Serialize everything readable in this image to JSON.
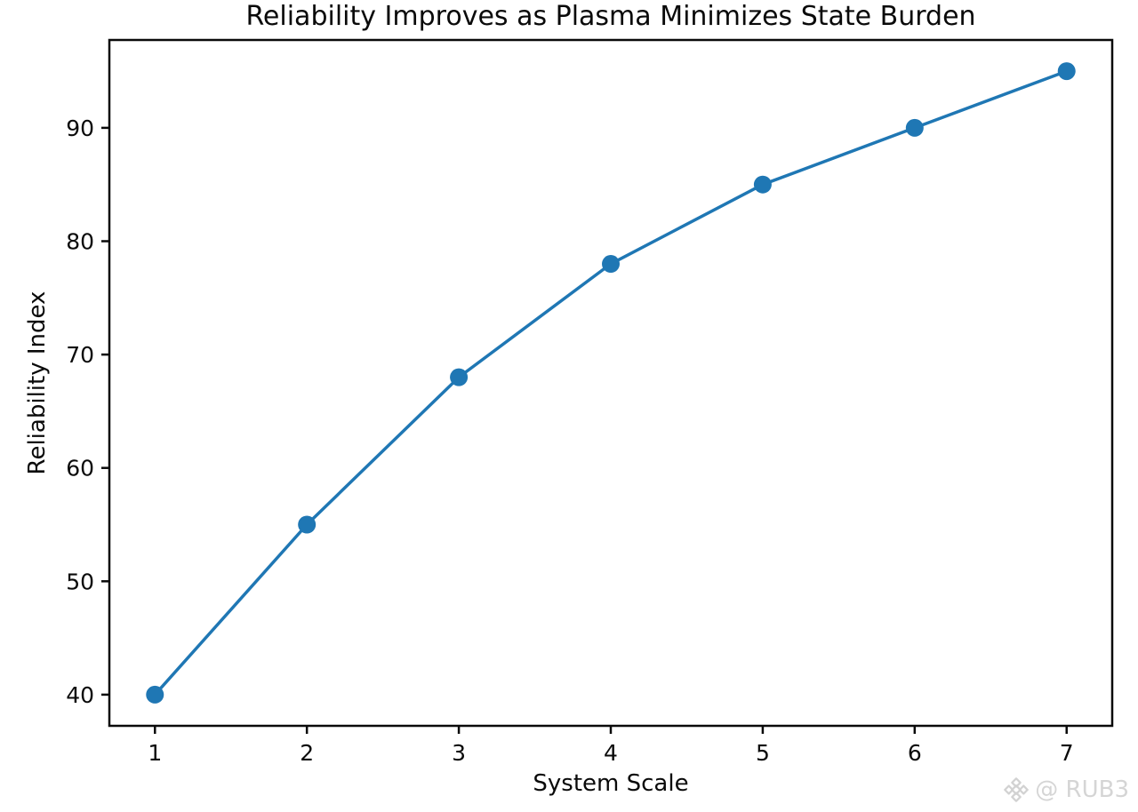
{
  "chart_data": {
    "type": "line",
    "title": "Reliability Improves as Plasma Minimizes State Burden",
    "xlabel": "System Scale",
    "ylabel": "Reliability Index",
    "x": [
      1,
      2,
      3,
      4,
      5,
      6,
      7
    ],
    "series": [
      {
        "name": "Reliability Index",
        "values": [
          40,
          55,
          68,
          78,
          85,
          90,
          95
        ]
      }
    ],
    "x_ticks": [
      1,
      2,
      3,
      4,
      5,
      6,
      7
    ],
    "y_ticks": [
      40,
      50,
      60,
      70,
      80,
      90
    ],
    "xlim": [
      0.7,
      7.3
    ],
    "ylim": [
      37.25,
      97.75
    ],
    "grid": false,
    "legend": "none",
    "line_color": "#1f77b4",
    "marker": "circle",
    "axis_color": "#0a0a0a"
  },
  "watermark": {
    "text": "@ RUB3",
    "icon": "diamond-logo",
    "color": "#d5d5d5"
  }
}
